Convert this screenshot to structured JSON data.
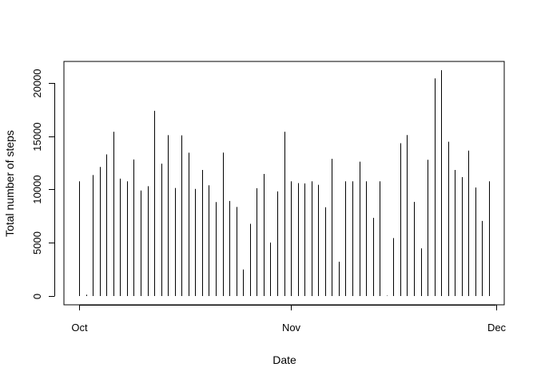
{
  "chart_data": {
    "type": "bar",
    "subtype": "vertical-lines (histogram-style, R plot type='h')",
    "title": "",
    "xlabel": "Date",
    "ylabel": "Total number of steps",
    "x_ticks": [
      {
        "label": "Oct",
        "date": "2012-10-01"
      },
      {
        "label": "Nov",
        "date": "2012-11-01"
      },
      {
        "label": "Dec",
        "date": "2012-12-01"
      }
    ],
    "y_ticks": [
      0,
      5000,
      10000,
      15000,
      20000
    ],
    "xlim": [
      "2012-10-01",
      "2012-11-30"
    ],
    "ylim": [
      0,
      21194
    ],
    "grid": false,
    "legend": "none",
    "color": "#000000",
    "series": [
      {
        "x": [
          "2012-10-01",
          "2012-10-02",
          "2012-10-03",
          "2012-10-04",
          "2012-10-05",
          "2012-10-06",
          "2012-10-07",
          "2012-10-08",
          "2012-10-09",
          "2012-10-10",
          "2012-10-11",
          "2012-10-12",
          "2012-10-13",
          "2012-10-14",
          "2012-10-15",
          "2012-10-16",
          "2012-10-17",
          "2012-10-18",
          "2012-10-19",
          "2012-10-20",
          "2012-10-21",
          "2012-10-22",
          "2012-10-23",
          "2012-10-24",
          "2012-10-25",
          "2012-10-26",
          "2012-10-27",
          "2012-10-28",
          "2012-10-29",
          "2012-10-30",
          "2012-10-31",
          "2012-11-01",
          "2012-11-02",
          "2012-11-03",
          "2012-11-04",
          "2012-11-05",
          "2012-11-06",
          "2012-11-07",
          "2012-11-08",
          "2012-11-09",
          "2012-11-10",
          "2012-11-11",
          "2012-11-12",
          "2012-11-13",
          "2012-11-14",
          "2012-11-15",
          "2012-11-16",
          "2012-11-17",
          "2012-11-18",
          "2012-11-19",
          "2012-11-20",
          "2012-11-21",
          "2012-11-22",
          "2012-11-23",
          "2012-11-24",
          "2012-11-25",
          "2012-11-26",
          "2012-11-27",
          "2012-11-28",
          "2012-11-29",
          "2012-11-30"
        ],
        "values": [
          10766,
          126,
          11352,
          12116,
          13294,
          15420,
          11015,
          10766,
          12811,
          9900,
          10304,
          17382,
          12426,
          15098,
          10139,
          15084,
          13452,
          10056,
          11829,
          10395,
          8821,
          13460,
          8918,
          8355,
          2492,
          6778,
          10119,
          11458,
          5018,
          9819,
          15414,
          10766,
          10600,
          10571,
          10766,
          10439,
          8334,
          12883,
          3219,
          10766,
          10766,
          12608,
          10765,
          7336,
          10766,
          41,
          5441,
          14339,
          15110,
          8841,
          4472,
          12787,
          20427,
          21194,
          14478,
          11834,
          11162,
          13646,
          10183,
          7047,
          10766
        ]
      }
    ]
  }
}
